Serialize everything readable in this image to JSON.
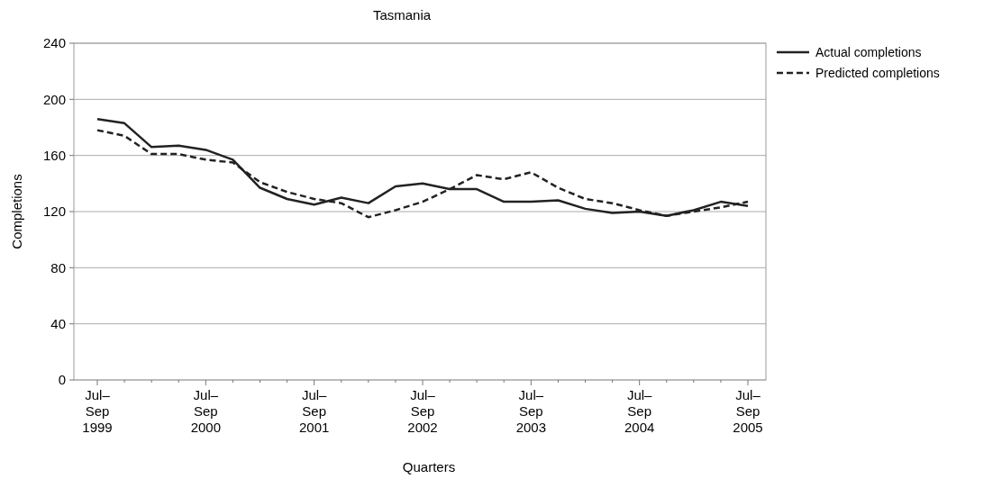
{
  "chart_data": {
    "type": "line",
    "title": "Tasmania",
    "xlabel": "Quarters",
    "ylabel": "Completions",
    "categories": [
      "Jul–Sep 1999",
      null,
      null,
      null,
      "Jul–Sep 2000",
      null,
      null,
      null,
      "Jul–Sep 2001",
      null,
      null,
      null,
      "Jul–Sep 2002",
      null,
      null,
      null,
      "Jul–Sep 2003",
      null,
      null,
      null,
      "Jul–Sep 2004",
      null,
      null,
      null,
      "Jul–Sep 2005"
    ],
    "series": [
      {
        "name": "Actual completions",
        "color": "#222222",
        "line_style": "solid",
        "values": [
          186,
          183,
          166,
          167,
          164,
          157,
          137,
          129,
          125,
          130,
          126,
          138,
          140,
          136,
          136,
          127,
          127,
          128,
          122,
          119,
          120,
          117,
          121,
          127,
          124
        ]
      },
      {
        "name": "Predicted completions",
        "color": "#222222",
        "line_style": "dashed",
        "values": [
          178,
          174,
          161,
          161,
          157,
          155,
          141,
          134,
          129,
          126,
          116,
          121,
          127,
          136,
          146,
          143,
          148,
          137,
          129,
          126,
          121,
          117,
          120,
          123,
          127
        ]
      }
    ],
    "ylim": [
      0,
      240
    ],
    "yticks": [
      0,
      40,
      80,
      120,
      160,
      200,
      240
    ],
    "grid": "y",
    "legend": "top right"
  }
}
